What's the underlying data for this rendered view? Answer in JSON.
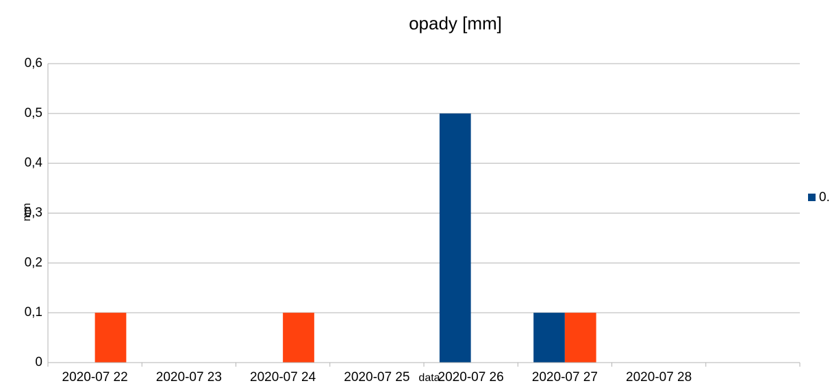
{
  "chart_data": {
    "type": "bar",
    "title": "opady [mm]",
    "x_label": "data",
    "y_label": "mm",
    "categories": [
      "2020-07 22",
      "2020-07 23",
      "2020-07 24",
      "2020-07 25",
      "2020-07 26",
      "2020-07 27",
      "2020-07 28",
      null
    ],
    "series": [
      {
        "name": "0.",
        "color": "#004586",
        "values": [
          null,
          null,
          null,
          null,
          0.5,
          0.1,
          null,
          null
        ]
      },
      {
        "color": "#ff420e",
        "values": [
          0.1,
          null,
          0.1,
          null,
          null,
          0.1,
          null,
          null
        ]
      }
    ],
    "ylim": [
      0,
      0.6
    ],
    "yticks": [
      0,
      {
        "value": 0.1,
        "label": "0,1"
      },
      {
        "value": 0.2,
        "label": "0,2"
      },
      {
        "value": 0.3,
        "label": "0,3"
      },
      {
        "value": 0.4,
        "label": "0,4"
      },
      {
        "value": 0.5,
        "label": "0,5"
      },
      {
        "value": 0.6,
        "label": "0,6"
      }
    ],
    "grid": true,
    "legend": "right"
  }
}
